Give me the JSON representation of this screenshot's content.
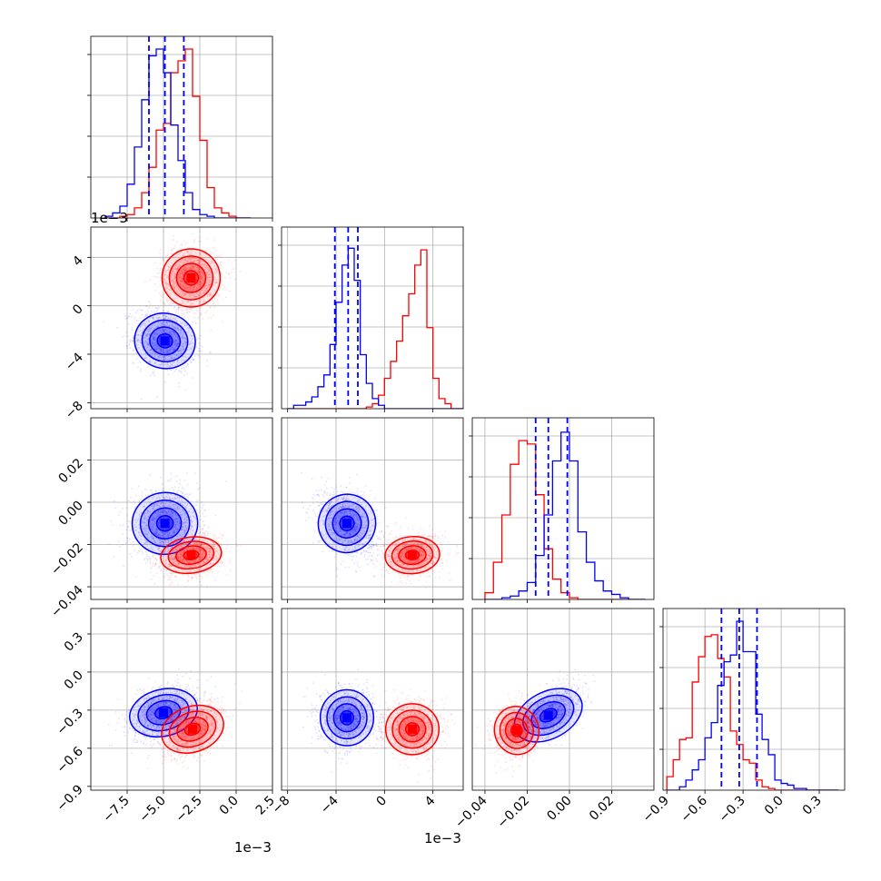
{
  "figure": {
    "offset_labels": {
      "col0": "1e−3",
      "col1": "1e−3",
      "row1": "1e−3"
    }
  },
  "colors": {
    "blue": "#0000ff",
    "red": "#ff0000",
    "grid": "#b0b0b0"
  },
  "chart_data": {
    "type": "corner",
    "series": [
      {
        "name": "",
        "color": "#0000ff",
        "mean": [
          -0.005,
          -0.003,
          -0.01,
          -0.33
        ],
        "quantiles_16_50_84": [
          [
            -0.006,
            -0.0049,
            -0.0036
          ],
          [
            -0.0041,
            -0.003,
            -0.0022
          ],
          [
            -0.016,
            -0.01,
            -0.001
          ],
          [
            -0.47,
            -0.33,
            -0.19
          ]
        ]
      },
      {
        "name": "",
        "color": "#ff0000",
        "mean": [
          -0.0031,
          0.0023,
          -0.025,
          -0.45
        ],
        "quantiles_16_50_84": null
      }
    ],
    "parameters": [
      {
        "range": [
          -0.01,
          0.0025
        ],
        "tick_values": [
          -0.0075,
          -0.005,
          -0.0025,
          0.0,
          0.0025
        ],
        "tick_labels": [
          "−7.5",
          "−5.0",
          "−2.5",
          "0.0",
          "2.5"
        ]
      },
      {
        "range": [
          -0.0085,
          0.0065
        ],
        "tick_values": [
          -0.008,
          -0.004,
          0.0,
          0.004
        ],
        "tick_labels": [
          "−8",
          "−4",
          "0",
          "4"
        ]
      },
      {
        "range": [
          -0.046,
          0.04
        ],
        "tick_values": [
          -0.04,
          -0.02,
          0.0,
          0.02
        ],
        "tick_labels": [
          "−0.04",
          "−0.02",
          "0.00",
          "0.02"
        ]
      },
      {
        "range": [
          -0.93,
          0.5
        ],
        "tick_values": [
          -0.9,
          -0.6,
          -0.3,
          0.0,
          0.3
        ],
        "tick_labels": [
          "−0.9",
          "−0.6",
          "−0.3",
          "0.0",
          "0.3"
        ]
      }
    ],
    "histograms": [
      {
        "bins": [
          -0.009,
          -0.0085,
          -0.008,
          -0.0075,
          -0.007,
          -0.0065,
          -0.006,
          -0.0055,
          -0.005,
          -0.0045,
          -0.004,
          -0.0035,
          -0.003,
          -0.0025,
          -0.002,
          -0.0015,
          -0.001,
          -0.0005,
          0.0,
          0.0005,
          0.001
        ],
        "blue": [
          0.01,
          0.03,
          0.07,
          0.2,
          0.42,
          0.7,
          0.96,
          1.0,
          0.86,
          0.55,
          0.34,
          0.15,
          0.05,
          0.02,
          0.01,
          0.0,
          0.0,
          0.0,
          0.0,
          0.0
        ],
        "red": [
          0.0,
          0.0,
          0.01,
          0.02,
          0.06,
          0.15,
          0.3,
          0.52,
          0.56,
          0.86,
          0.93,
          1.0,
          0.72,
          0.46,
          0.18,
          0.06,
          0.03,
          0.01,
          0.0,
          0.0
        ]
      },
      {
        "bins": [
          -0.008,
          -0.0075,
          -0.007,
          -0.0065,
          -0.006,
          -0.0055,
          -0.005,
          -0.0045,
          -0.004,
          -0.0035,
          -0.003,
          -0.0025,
          -0.002,
          -0.0015,
          -0.001,
          -0.0005,
          0.0,
          0.0005,
          0.001,
          0.0015,
          0.002,
          0.0025,
          0.003,
          0.0035,
          0.004,
          0.0045,
          0.005,
          0.0055,
          0.006,
          0.0065
        ],
        "blue": [
          0.0,
          0.02,
          0.02,
          0.04,
          0.07,
          0.13,
          0.2,
          0.38,
          0.63,
          0.85,
          0.95,
          0.76,
          0.32,
          0.15,
          0.06,
          0.02,
          0.0,
          0.0,
          0.0,
          0.0,
          0.0,
          0.0,
          0.0,
          0.0,
          0.0,
          0.0,
          0.0,
          0.0,
          0.0
        ],
        "red": [
          0.0,
          0.0,
          0.0,
          0.0,
          0.0,
          0.0,
          0.0,
          0.0,
          0.0,
          0.0,
          0.0,
          0.0,
          0.0,
          0.01,
          0.03,
          0.08,
          0.18,
          0.28,
          0.4,
          0.55,
          0.68,
          0.85,
          0.94,
          0.48,
          0.18,
          0.06,
          0.03,
          0.0,
          0.0
        ]
      },
      {
        "bins": [
          -0.04,
          -0.036,
          -0.032,
          -0.028,
          -0.024,
          -0.02,
          -0.016,
          -0.012,
          -0.008,
          -0.004,
          0.0,
          0.004,
          0.008,
          0.012,
          0.016,
          0.02,
          0.024,
          0.028,
          0.032,
          0.036
        ],
        "blue": [
          0.0,
          0.0,
          0.01,
          0.02,
          0.05,
          0.1,
          0.26,
          0.5,
          0.82,
          0.99,
          0.82,
          0.4,
          0.22,
          0.11,
          0.05,
          0.03,
          0.01,
          0.0,
          0.0
        ],
        "red": [
          0.04,
          0.22,
          0.5,
          0.8,
          0.94,
          0.92,
          0.62,
          0.3,
          0.12,
          0.04,
          0.01,
          0.0,
          0.0,
          0.0,
          0.0,
          0.0,
          0.0,
          0.0,
          0.0
        ]
      },
      {
        "bins": [
          -0.9,
          -0.85,
          -0.8,
          -0.75,
          -0.7,
          -0.65,
          -0.6,
          -0.55,
          -0.5,
          -0.45,
          -0.4,
          -0.35,
          -0.3,
          -0.25,
          -0.2,
          -0.15,
          -0.1,
          -0.05,
          0.0,
          0.05,
          0.1,
          0.15,
          0.2,
          0.25,
          0.3,
          0.35,
          0.4,
          0.45
        ],
        "blue": [
          0.0,
          0.0,
          0.02,
          0.06,
          0.12,
          0.18,
          0.31,
          0.4,
          0.62,
          0.76,
          0.8,
          1.0,
          0.82,
          0.82,
          0.45,
          0.3,
          0.21,
          0.06,
          0.04,
          0.03,
          0.01,
          0.01,
          0.0,
          0.0,
          0.0,
          0.0,
          0.0
        ],
        "red": [
          0.08,
          0.18,
          0.3,
          0.31,
          0.64,
          0.79,
          0.91,
          0.92,
          0.78,
          0.67,
          0.35,
          0.27,
          0.18,
          0.16,
          0.06,
          0.02,
          0.01,
          0.0,
          0.0,
          0.0,
          0.0,
          0.0,
          0.0,
          0.0,
          0.0,
          0.0,
          0.0
        ]
      }
    ],
    "pairs": [
      {
        "row": 1,
        "col": 0,
        "blue": {
          "cx": -0.0049,
          "cy": -0.0029,
          "sx": 0.001,
          "sy": 0.0012,
          "rho": -0.2
        },
        "red": {
          "cx": -0.0031,
          "cy": 0.0023,
          "sx": 0.001,
          "sy": 0.0012,
          "rho": 0.0
        }
      },
      {
        "row": 2,
        "col": 0,
        "blue": {
          "cx": -0.0049,
          "cy": -0.01,
          "sx": 0.0011,
          "sy": 0.0075,
          "rho": 0.1
        },
        "red": {
          "cx": -0.0031,
          "cy": -0.025,
          "sx": 0.001,
          "sy": 0.0045,
          "rho": 0.2
        }
      },
      {
        "row": 2,
        "col": 1,
        "blue": {
          "cx": -0.0031,
          "cy": -0.01,
          "sx": 0.0011,
          "sy": 0.0075,
          "rho": -0.3
        },
        "red": {
          "cx": 0.0023,
          "cy": -0.025,
          "sx": 0.0011,
          "sy": 0.0045,
          "rho": 0.1
        }
      },
      {
        "row": 3,
        "col": 0,
        "blue": {
          "cx": -0.005,
          "cy": -0.32,
          "sx": 0.0011,
          "sy": 0.1,
          "rho": 0.3
        },
        "red": {
          "cx": -0.003,
          "cy": -0.45,
          "sx": 0.001,
          "sy": 0.1,
          "rho": 0.4
        }
      },
      {
        "row": 3,
        "col": 1,
        "blue": {
          "cx": -0.0031,
          "cy": -0.36,
          "sx": 0.0011,
          "sy": 0.11,
          "rho": 0.0
        },
        "red": {
          "cx": 0.0023,
          "cy": -0.45,
          "sx": 0.0011,
          "sy": 0.1,
          "rho": 0.0
        }
      },
      {
        "row": 3,
        "col": 2,
        "blue": {
          "cx": -0.01,
          "cy": -0.34,
          "sx": 0.0075,
          "sy": 0.11,
          "rho": 0.6
        },
        "red": {
          "cx": -0.025,
          "cy": -0.46,
          "sx": 0.005,
          "sy": 0.1,
          "rho": 0.2
        }
      }
    ]
  }
}
